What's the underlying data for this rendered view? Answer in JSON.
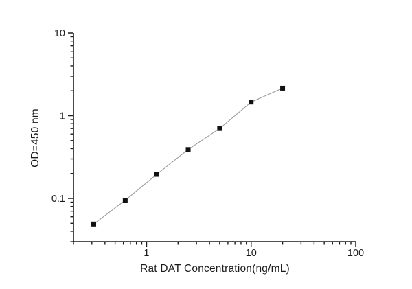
{
  "chart_data": {
    "type": "line",
    "title": "",
    "xlabel": "Rat DAT Concentration(ng/mL)",
    "ylabel": "OD=450 nm",
    "x_scale": "log",
    "y_scale": "log",
    "xlim": [
      0.2,
      100
    ],
    "ylim": [
      0.03,
      10
    ],
    "x": [
      0.3125,
      0.625,
      1.25,
      2.5,
      5,
      10,
      20
    ],
    "values": [
      0.049,
      0.095,
      0.195,
      0.39,
      0.7,
      1.46,
      2.15
    ],
    "x_major_ticks": [
      1,
      10,
      100
    ],
    "x_tick_labels": [
      "1",
      "10",
      "100"
    ],
    "y_major_ticks": [
      0.1,
      1,
      10
    ],
    "y_tick_labels": [
      "0.1",
      "1",
      "10"
    ],
    "grid": "off",
    "legend": "none",
    "colors": {
      "axis": "#1a1a1a",
      "line": "#9c9c9c",
      "marker": "#111111",
      "background": "#ffffff"
    }
  }
}
